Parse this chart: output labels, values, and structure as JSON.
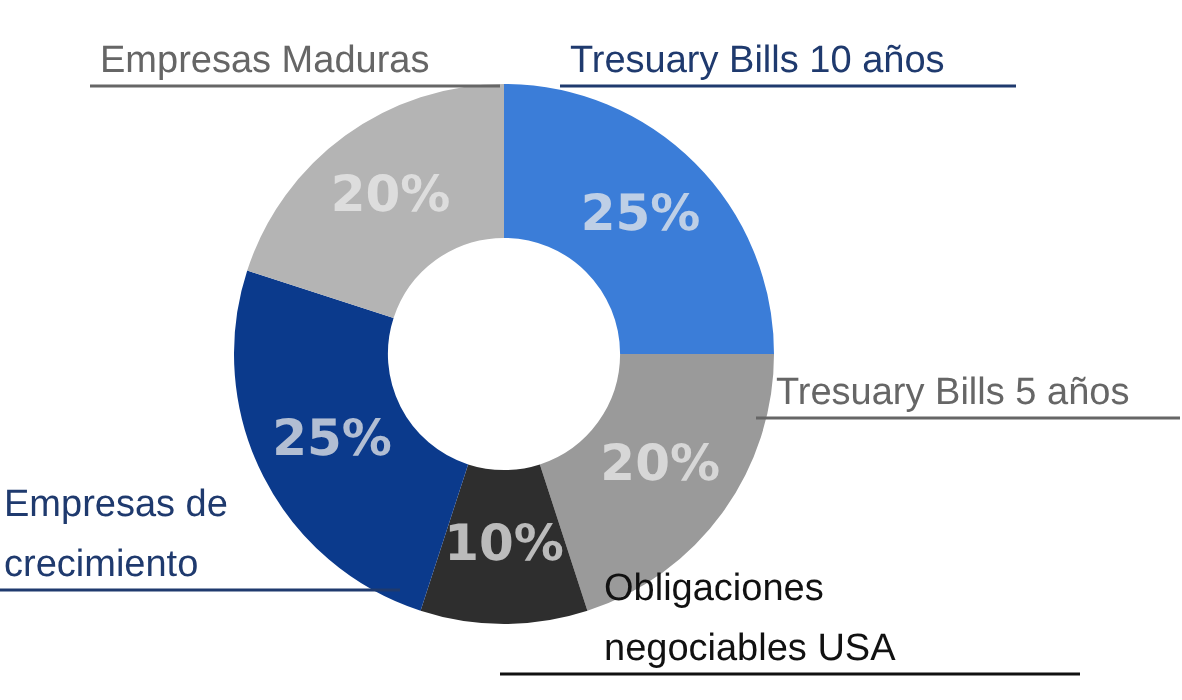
{
  "chart_data": {
    "type": "donut",
    "categories": [
      "Tresuary Bills 10 años",
      "Tresuary Bills 5 años",
      "Obligaciones negociables USA",
      "Empresas de crecimiento",
      "Empresas Maduras"
    ],
    "values": [
      25,
      20,
      10,
      25,
      20
    ],
    "colors": [
      "#3b7dd8",
      "#9a9a9a",
      "#2e2e2e",
      "#0b3a8c",
      "#b4b4b4"
    ],
    "value_labels": [
      "25%",
      "20%",
      "10%",
      "25%",
      "20%"
    ],
    "legend": false
  }
}
